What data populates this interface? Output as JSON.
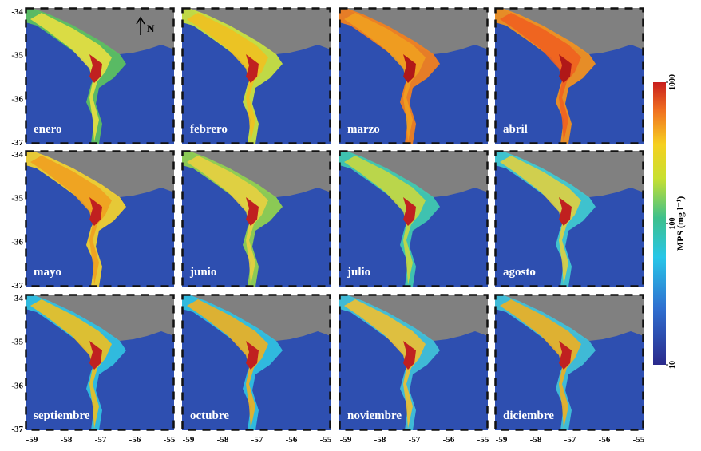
{
  "map": {
    "panels": [
      {
        "label": "enero"
      },
      {
        "label": "febrero"
      },
      {
        "label": "marzo"
      },
      {
        "label": "abril"
      },
      {
        "label": "mayo"
      },
      {
        "label": "junio"
      },
      {
        "label": "julio"
      },
      {
        "label": "agosto"
      },
      {
        "label": "septiembre"
      },
      {
        "label": "octubre"
      },
      {
        "label": "noviembre"
      },
      {
        "label": "diciembre"
      }
    ],
    "lat_ticks": [
      -34,
      -35,
      -36,
      -37
    ],
    "lon_ticks": [
      -59,
      -58,
      -57,
      -56,
      -55
    ],
    "north": "N",
    "colorbar": {
      "title": "MPS (mg l⁻¹)",
      "ticks": [
        10,
        100,
        1000
      ],
      "range": [
        10,
        1000
      ],
      "scale": "log"
    }
  }
}
